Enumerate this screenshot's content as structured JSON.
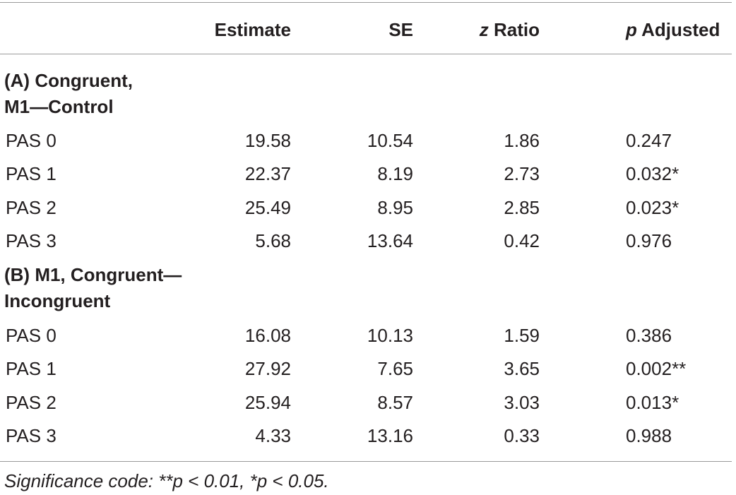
{
  "table": {
    "headers": {
      "estimate": "Estimate",
      "se": "SE",
      "z_italic": "z",
      "z_rest": " Ratio",
      "p_italic": "p",
      "p_rest": " Adjusted"
    },
    "sections": [
      {
        "title_line1": "(A) Congruent,",
        "title_line2": "M1—Control",
        "rows": [
          {
            "label": "PAS 0",
            "estimate": "19.58",
            "se": "10.54",
            "z": "1.86",
            "p": "0.247"
          },
          {
            "label": "PAS 1",
            "estimate": "22.37",
            "se": "8.19",
            "z": "2.73",
            "p": "0.032*"
          },
          {
            "label": "PAS 2",
            "estimate": "25.49",
            "se": "8.95",
            "z": "2.85",
            "p": "0.023*"
          },
          {
            "label": "PAS 3",
            "estimate": "5.68",
            "se": "13.64",
            "z": "0.42",
            "p": "0.976"
          }
        ]
      },
      {
        "title_line1": "(B) M1, Congruent—",
        "title_line2": "Incongruent",
        "rows": [
          {
            "label": "PAS 0",
            "estimate": "16.08",
            "se": "10.13",
            "z": "1.59",
            "p": "0.386"
          },
          {
            "label": "PAS 1",
            "estimate": "27.92",
            "se": "7.65",
            "z": "3.65",
            "p": "0.002**"
          },
          {
            "label": "PAS 2",
            "estimate": "25.94",
            "se": "8.57",
            "z": "3.03",
            "p": "0.013*"
          },
          {
            "label": "PAS 3",
            "estimate": "4.33",
            "se": "13.16",
            "z": "0.33",
            "p": "0.988"
          }
        ]
      }
    ],
    "footnote": "Significance code: **p < 0.01, *p < 0.05."
  }
}
